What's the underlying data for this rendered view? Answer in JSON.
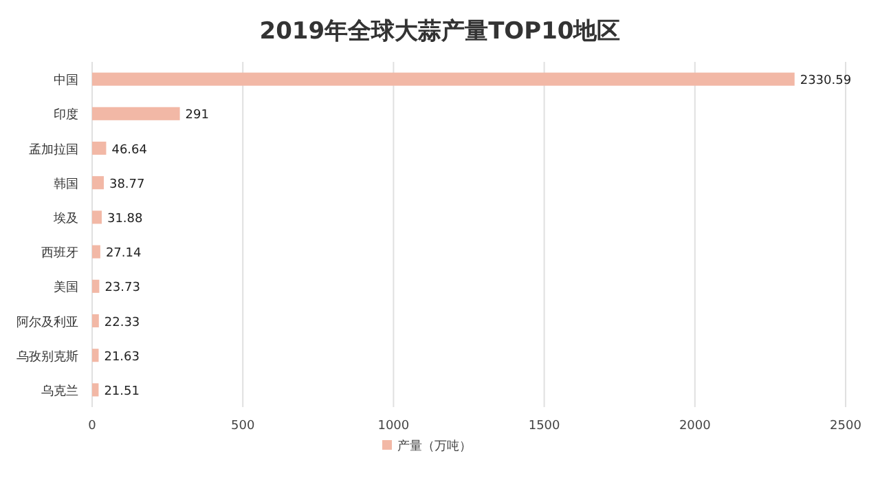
{
  "chart_data": {
    "type": "bar",
    "orientation": "horizontal",
    "title": "2019年全球大蒜产量TOP10地区",
    "categories": [
      "中国",
      "印度",
      "孟加拉国",
      "韩国",
      "埃及",
      "西班牙",
      "美国",
      "阿尔及利亚",
      "乌孜别克斯",
      "乌克兰"
    ],
    "series": [
      {
        "name": "产量（万吨）",
        "color": "#f2b8a6",
        "values": [
          2330.59,
          291,
          46.64,
          38.77,
          31.88,
          27.14,
          23.73,
          22.33,
          21.63,
          21.51
        ]
      }
    ],
    "xlim": [
      0,
      2500
    ],
    "xticks": [
      0,
      500,
      1000,
      1500,
      2000,
      2500
    ],
    "grid": "x",
    "legend": "bottom",
    "data_labels": true
  }
}
